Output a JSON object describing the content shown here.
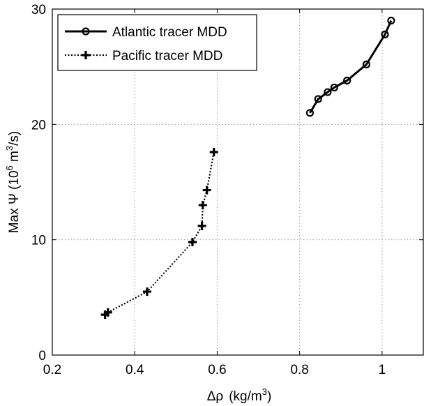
{
  "chart_data": {
    "type": "line",
    "xlabel_prefix": "Δρ",
    "xlabel_units": "(kg/m",
    "xlabel_units_sup": "3",
    "xlabel_units_end": ")",
    "ylabel_main": "Max Ψ (10",
    "ylabel_sup6": "6",
    "ylabel_mid": " m",
    "ylabel_sup3": "3",
    "ylabel_end": "/s)",
    "xlim": [
      0.2,
      1.1
    ],
    "ylim": [
      0,
      30
    ],
    "xticks": [
      0.2,
      0.4,
      0.6,
      0.8,
      1.0
    ],
    "xtick_labels": [
      "0.2",
      "0.4",
      "0.6",
      "0.8",
      "1"
    ],
    "yticks": [
      0,
      10,
      20,
      30
    ],
    "ytick_labels": [
      "0",
      "10",
      "20",
      "30"
    ],
    "grid": true,
    "legend_position": "top-left",
    "series": [
      {
        "name": "Atlantic tracer MDD",
        "line_style": "solid",
        "marker": "circle",
        "color": "#000000",
        "x": [
          0.825,
          0.845,
          0.868,
          0.884,
          0.915,
          0.962,
          1.007,
          1.022
        ],
        "y": [
          21.0,
          22.2,
          22.8,
          23.2,
          23.8,
          25.2,
          27.8,
          29.0
        ]
      },
      {
        "name": "Pacific tracer MDD",
        "line_style": "dotted",
        "marker": "plus",
        "color": "#000000",
        "x": [
          0.328,
          0.335,
          0.43,
          0.54,
          0.563,
          0.565,
          0.575,
          0.592
        ],
        "y": [
          3.5,
          3.7,
          5.5,
          9.8,
          11.2,
          13.0,
          14.3,
          17.6
        ]
      }
    ]
  }
}
